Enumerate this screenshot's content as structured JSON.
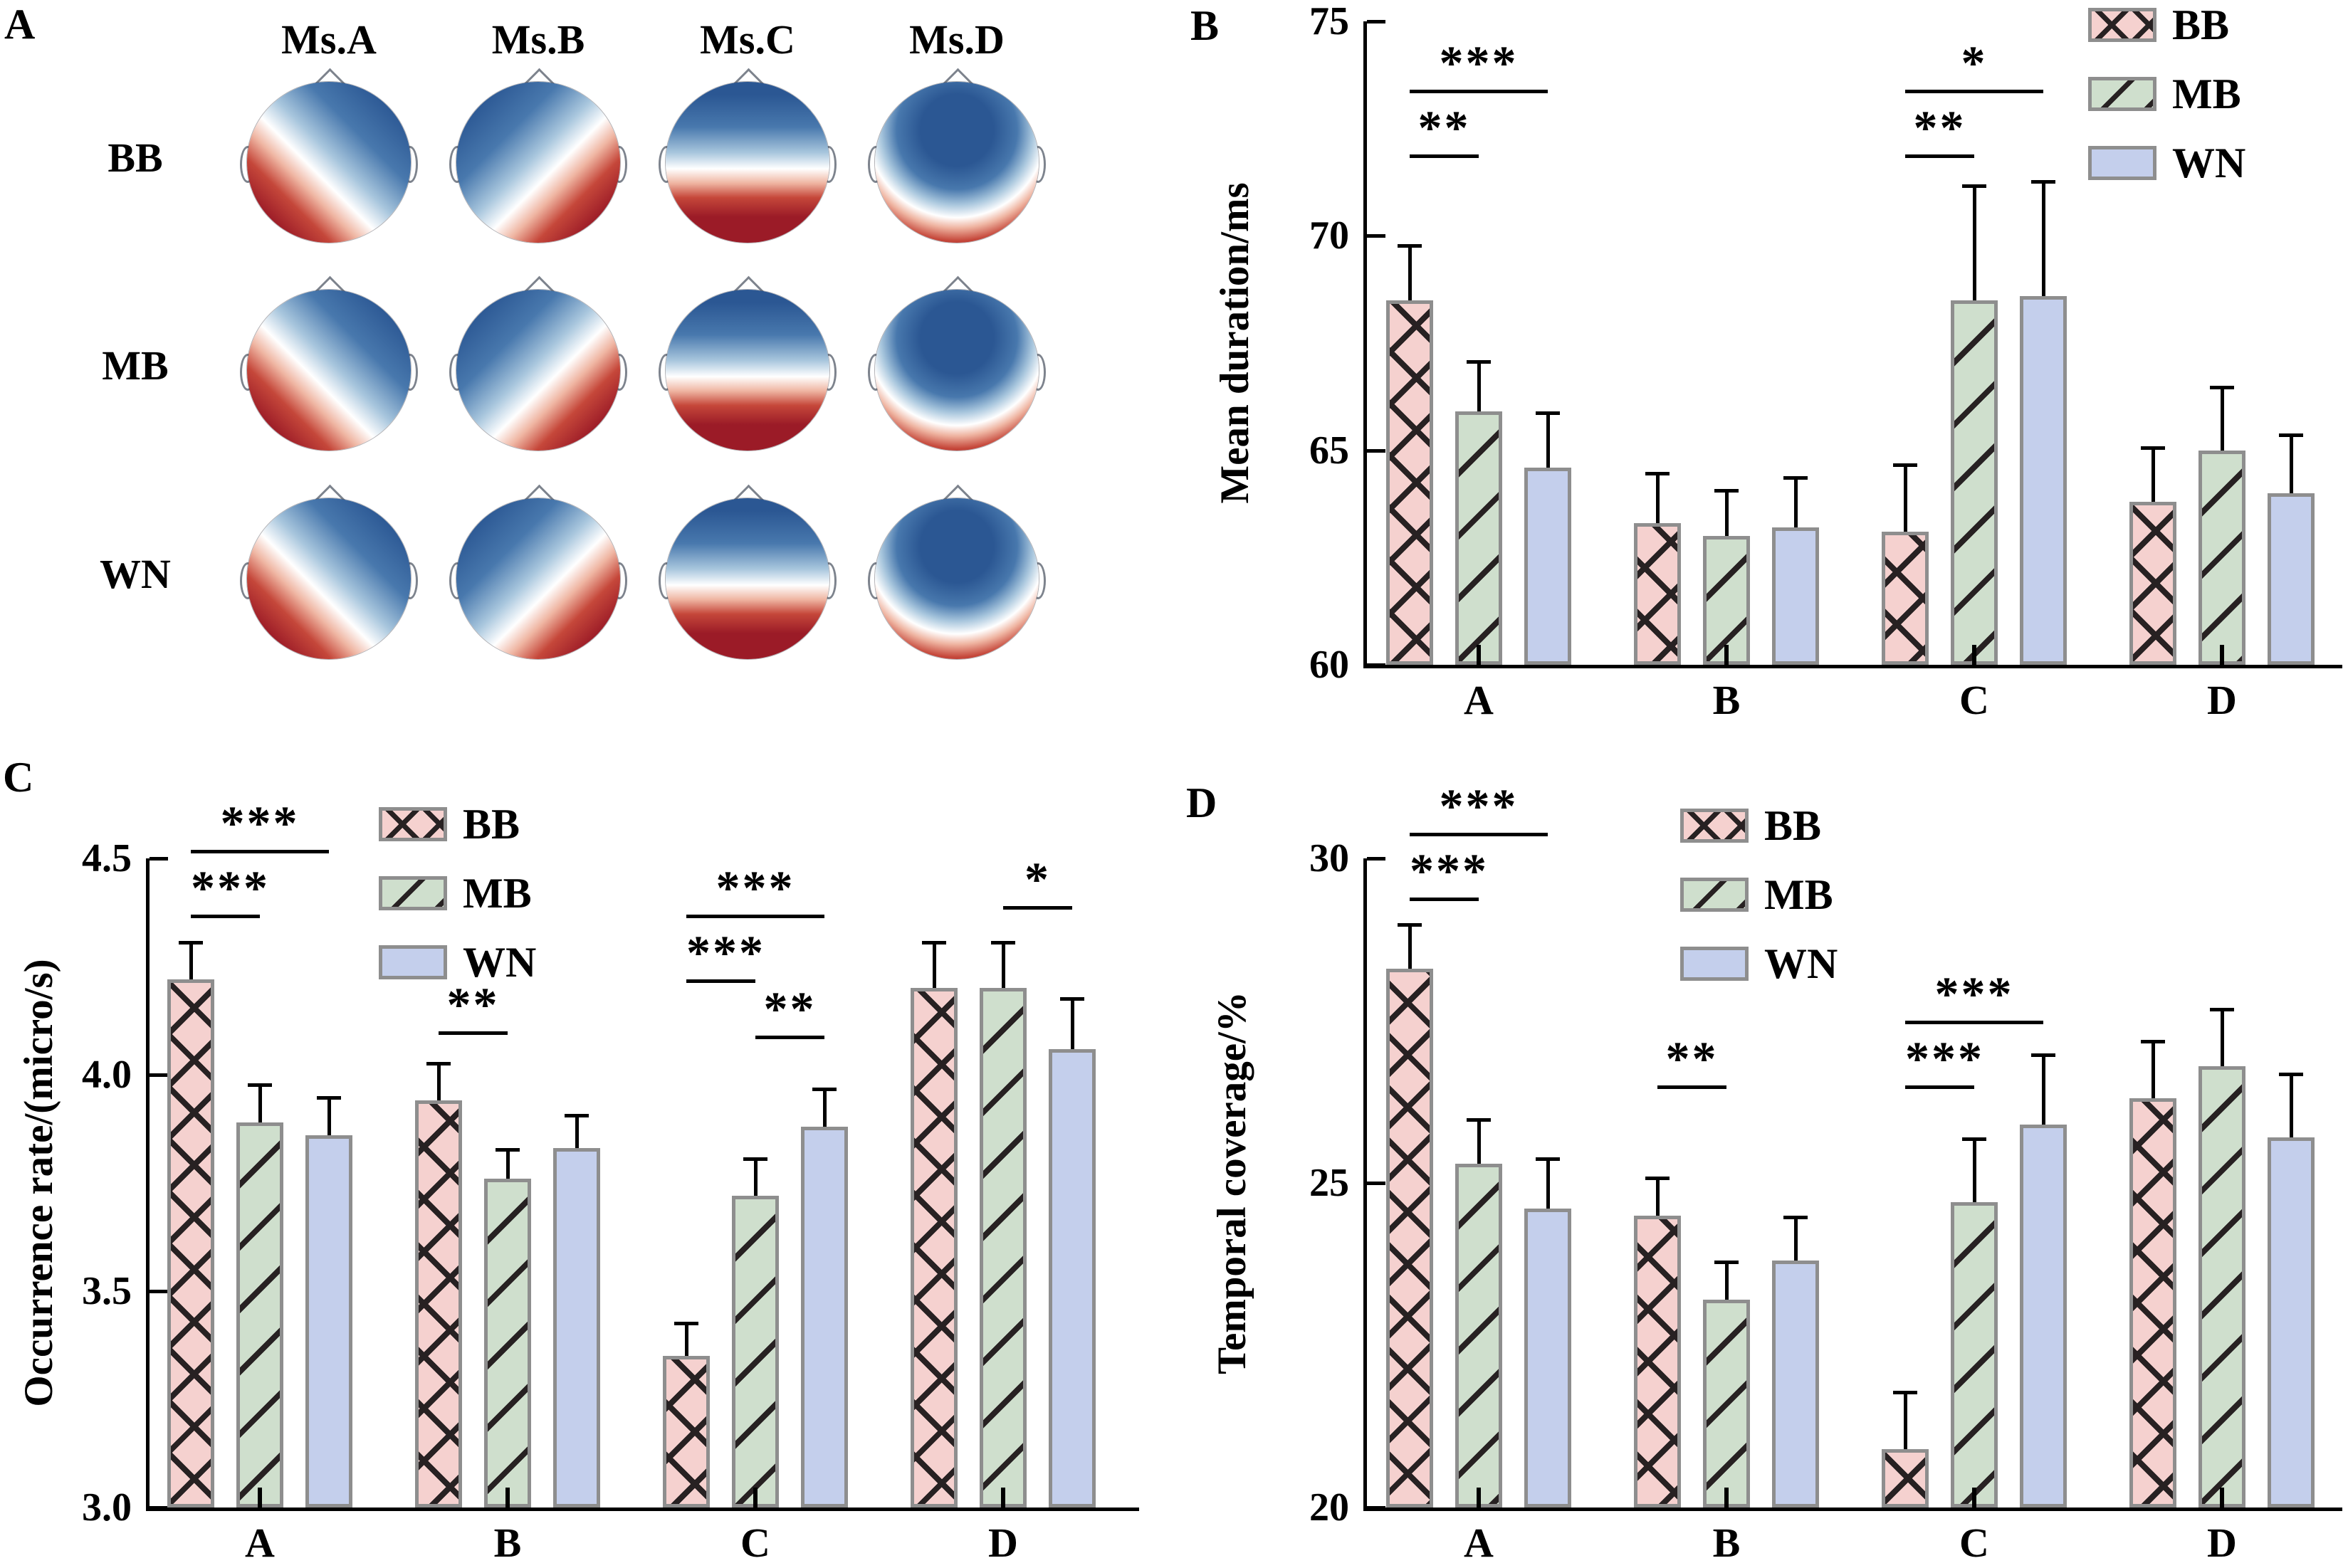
{
  "colors": {
    "bb_fill": "#f5d1cf",
    "mb_fill": "#cfdfcd",
    "wn_fill": "#c4cfec",
    "hatch": "#272122",
    "bar_border": "#8e8e8e",
    "axis": "#000000",
    "topo_blue_dark": "#2b5793",
    "topo_blue_mid": "#4878ad",
    "topo_blue_light": "#a8c6dd",
    "topo_red_light": "#efb5a2",
    "topo_red_mid": "#c5473a",
    "topo_red_dark": "#9b1b27"
  },
  "panel_a": {
    "label": "A",
    "col_headers": [
      "Ms.A",
      "Ms.B",
      "Ms.C",
      "Ms.D"
    ],
    "row_labels": [
      "BB",
      "MB",
      "WN"
    ],
    "map_types": [
      "left-diagonal",
      "right-diagonal",
      "horizontal",
      "focal"
    ]
  },
  "chart_data": [
    {
      "panel_label": "B",
      "type": "bar",
      "title": "",
      "xlabel": "",
      "ylabel": "Mean duration/ms",
      "ylim": [
        60,
        75
      ],
      "ytick_values": [
        60,
        65,
        70,
        75
      ],
      "yticks": [
        "60",
        "65",
        "70",
        "75"
      ],
      "grid": false,
      "legend_position": "top-right",
      "categories": [
        "A",
        "B",
        "C",
        "D"
      ],
      "series": [
        {
          "name": "BB",
          "pattern": "crosshatch",
          "values": [
            68.5,
            63.3,
            63.1,
            63.8
          ],
          "errors": [
            1.3,
            1.2,
            1.6,
            1.3
          ]
        },
        {
          "name": "MB",
          "pattern": "diagonal",
          "values": [
            65.9,
            63.0,
            68.5,
            65.0
          ],
          "errors": [
            1.2,
            1.1,
            2.7,
            1.5
          ]
        },
        {
          "name": "WN",
          "pattern": "solid",
          "values": [
            64.6,
            63.2,
            68.6,
            64.0
          ],
          "errors": [
            1.3,
            1.2,
            2.7,
            1.4
          ]
        }
      ],
      "significance": [
        {
          "category": "A",
          "between": [
            "BB",
            "WN"
          ],
          "stars": "***",
          "y": 73.4
        },
        {
          "category": "A",
          "between": [
            "BB",
            "MB"
          ],
          "stars": "**",
          "y": 71.9
        },
        {
          "category": "C",
          "between": [
            "BB",
            "WN"
          ],
          "stars": "*",
          "y": 73.4
        },
        {
          "category": "C",
          "between": [
            "BB",
            "MB"
          ],
          "stars": "**",
          "y": 71.9
        }
      ]
    },
    {
      "panel_label": "C",
      "type": "bar",
      "title": "",
      "xlabel": "",
      "ylabel": "Occurrence rate/(micro/s)",
      "ylim": [
        3.0,
        4.5
      ],
      "ytick_values": [
        3.0,
        3.5,
        4.0,
        4.5
      ],
      "yticks": [
        "3.0",
        "3.5",
        "4.0",
        "4.5"
      ],
      "grid": false,
      "legend_position": "inside-top-left",
      "categories": [
        "A",
        "B",
        "C",
        "D"
      ],
      "series": [
        {
          "name": "BB",
          "pattern": "crosshatch",
          "values": [
            4.22,
            3.94,
            3.35,
            4.2
          ],
          "errors": [
            0.09,
            0.09,
            0.08,
            0.11
          ]
        },
        {
          "name": "MB",
          "pattern": "diagonal",
          "values": [
            3.89,
            3.76,
            3.72,
            4.2
          ],
          "errors": [
            0.09,
            0.07,
            0.09,
            0.11
          ]
        },
        {
          "name": "WN",
          "pattern": "solid",
          "values": [
            3.86,
            3.83,
            3.88,
            4.06
          ],
          "errors": [
            0.09,
            0.08,
            0.09,
            0.12
          ]
        }
      ],
      "significance": [
        {
          "category": "A",
          "between": [
            "BB",
            "WN"
          ],
          "stars": "***",
          "y": 4.52
        },
        {
          "category": "A",
          "between": [
            "BB",
            "MB"
          ],
          "stars": "***",
          "y": 4.37
        },
        {
          "category": "B",
          "between": [
            "BB",
            "MB"
          ],
          "stars": "**",
          "y": 4.1
        },
        {
          "category": "C",
          "between": [
            "BB",
            "WN"
          ],
          "stars": "***",
          "y": 4.37
        },
        {
          "category": "C",
          "between": [
            "BB",
            "MB"
          ],
          "stars": "***",
          "y": 4.22
        },
        {
          "category": "C",
          "between": [
            "MB",
            "WN"
          ],
          "stars": "**",
          "y": 4.09
        },
        {
          "category": "D",
          "between": [
            "MB",
            "WN"
          ],
          "stars": "*",
          "y": 4.39
        }
      ]
    },
    {
      "panel_label": "D",
      "type": "bar",
      "title": "",
      "xlabel": "",
      "ylabel": "Temporal coverage/%",
      "ylim": [
        20,
        30
      ],
      "ytick_values": [
        20,
        25,
        30
      ],
      "yticks": [
        "20",
        "25",
        "30"
      ],
      "grid": false,
      "legend_position": "inside-top-center",
      "categories": [
        "A",
        "B",
        "C",
        "D"
      ],
      "series": [
        {
          "name": "BB",
          "pattern": "crosshatch",
          "values": [
            28.3,
            24.5,
            20.9,
            26.3
          ],
          "errors": [
            0.7,
            0.6,
            0.9,
            0.9
          ]
        },
        {
          "name": "MB",
          "pattern": "diagonal",
          "values": [
            25.3,
            23.2,
            24.7,
            26.8
          ],
          "errors": [
            0.7,
            0.6,
            1.0,
            0.9
          ]
        },
        {
          "name": "WN",
          "pattern": "solid",
          "values": [
            24.6,
            23.8,
            25.9,
            25.7
          ],
          "errors": [
            0.8,
            0.7,
            1.1,
            1.0
          ]
        }
      ],
      "significance": [
        {
          "category": "A",
          "between": [
            "BB",
            "WN"
          ],
          "stars": "***",
          "y": 30.4
        },
        {
          "category": "A",
          "between": [
            "BB",
            "MB"
          ],
          "stars": "***",
          "y": 29.4
        },
        {
          "category": "B",
          "between": [
            "BB",
            "MB"
          ],
          "stars": "**",
          "y": 26.5
        },
        {
          "category": "C",
          "between": [
            "BB",
            "WN"
          ],
          "stars": "***",
          "y": 27.5
        },
        {
          "category": "C",
          "between": [
            "BB",
            "MB"
          ],
          "stars": "***",
          "y": 26.5
        }
      ]
    }
  ]
}
